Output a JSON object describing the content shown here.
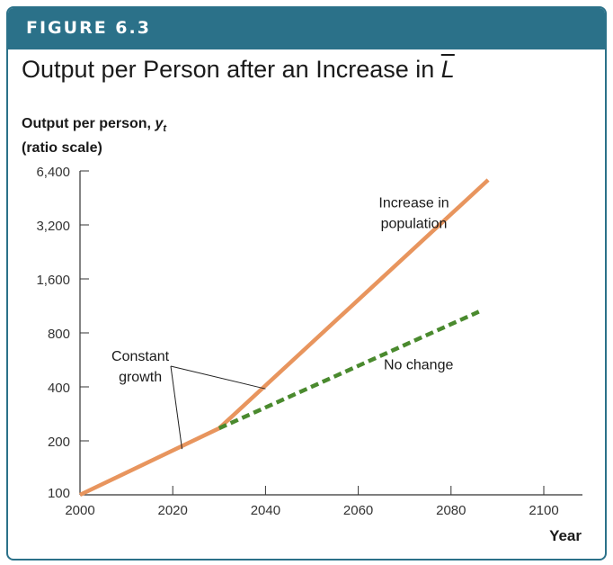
{
  "figure_label": "FIGURE 6.3",
  "chart_data": {
    "type": "line",
    "title": {
      "prefix": "Output per Person after an Increase in ",
      "symbol": "L"
    },
    "ylabel": {
      "line1_text": "Output per person, ",
      "line1_var": "y",
      "line1_sub": "t",
      "line2": "(ratio scale)"
    },
    "xlabel": "Year",
    "x_ticks": [
      2000,
      2020,
      2040,
      2060,
      2080,
      2100
    ],
    "y_ticks": [
      100,
      200,
      400,
      800,
      1600,
      3200,
      6400
    ],
    "y_tick_labels": [
      "100",
      "200",
      "400",
      "800",
      "1,600",
      "3,200",
      "6,400"
    ],
    "xlim": [
      2000,
      2105
    ],
    "ylim": [
      100,
      6400
    ],
    "y_scale": "log2",
    "series": [
      {
        "id": "increase",
        "style": "solid",
        "color": "#e8955e",
        "x": [
          2000,
          2030,
          2088
        ],
        "y": [
          100,
          235,
          5700
        ]
      },
      {
        "id": "nochange",
        "style": "dashed",
        "color": "#4a8a2e",
        "x": [
          2030,
          2086
        ],
        "y": [
          235,
          1050
        ]
      }
    ],
    "annotations": [
      {
        "id": "increase-label",
        "lines": [
          "Increase in",
          "population"
        ],
        "x": 2072,
        "y": 4000
      },
      {
        "id": "nochange-label",
        "lines": [
          "No change"
        ],
        "x": 2073,
        "y": 500
      },
      {
        "id": "constant-label",
        "lines": [
          "Constant",
          "growth"
        ],
        "x": 2013,
        "y": 560
      }
    ],
    "pointer_targets": [
      {
        "x": 2022,
        "y": 180
      },
      {
        "x": 2040,
        "y": 390
      }
    ],
    "grid": false
  }
}
